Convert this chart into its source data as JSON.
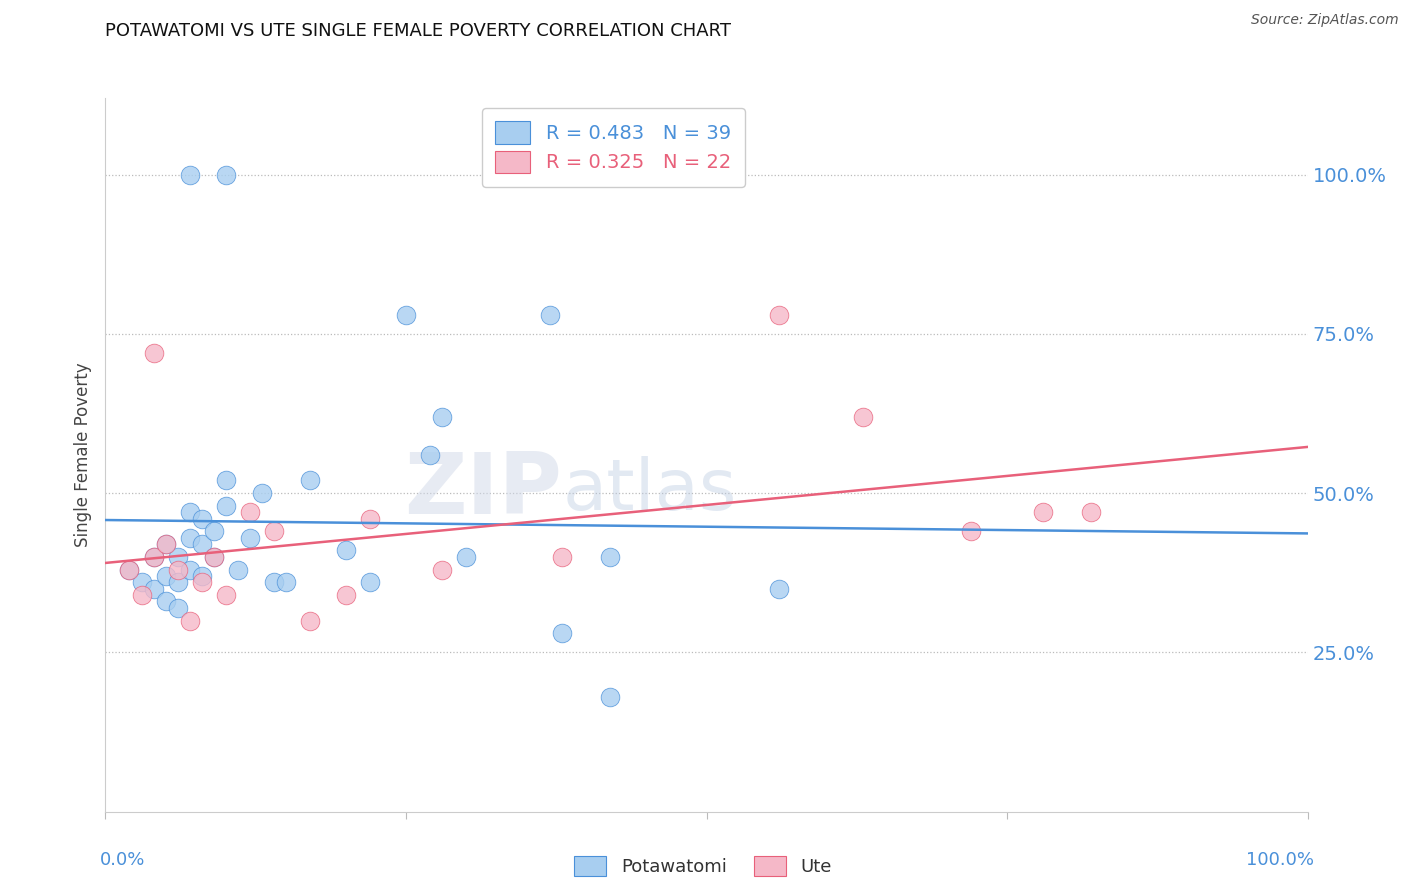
{
  "title": "POTAWATOMI VS UTE SINGLE FEMALE POVERTY CORRELATION CHART",
  "source": "Source: ZipAtlas.com",
  "ylabel": "Single Female Poverty",
  "potawatomi_R": 0.483,
  "potawatomi_N": 39,
  "ute_R": 0.325,
  "ute_N": 22,
  "potawatomi_color": "#A8CEF0",
  "ute_color": "#F5B8C8",
  "potawatomi_line_color": "#4A90D9",
  "ute_line_color": "#E8607A",
  "right_ytick_labels": [
    "100.0%",
    "75.0%",
    "50.0%",
    "25.0%"
  ],
  "right_ytick_values": [
    1.0,
    0.75,
    0.5,
    0.25
  ],
  "watermark_zip": "ZIP",
  "watermark_atlas": "atlas",
  "background_color": "#FFFFFF",
  "potawatomi_x": [
    0.02,
    0.03,
    0.04,
    0.04,
    0.05,
    0.05,
    0.05,
    0.06,
    0.06,
    0.06,
    0.07,
    0.07,
    0.07,
    0.08,
    0.08,
    0.08,
    0.09,
    0.09,
    0.1,
    0.1,
    0.11,
    0.12,
    0.13,
    0.14,
    0.15,
    0.17,
    0.2,
    0.22,
    0.27,
    0.3,
    0.38,
    0.42,
    0.07,
    0.1,
    0.25,
    0.37,
    0.42,
    0.56,
    0.28
  ],
  "potawatomi_y": [
    0.38,
    0.36,
    0.35,
    0.4,
    0.33,
    0.37,
    0.42,
    0.32,
    0.36,
    0.4,
    0.38,
    0.43,
    0.47,
    0.37,
    0.42,
    0.46,
    0.4,
    0.44,
    0.48,
    0.52,
    0.38,
    0.43,
    0.5,
    0.36,
    0.36,
    0.52,
    0.41,
    0.36,
    0.56,
    0.4,
    0.28,
    0.4,
    1.0,
    1.0,
    0.78,
    0.78,
    0.18,
    0.35,
    0.62
  ],
  "ute_x": [
    0.02,
    0.03,
    0.04,
    0.05,
    0.06,
    0.07,
    0.08,
    0.09,
    0.1,
    0.12,
    0.14,
    0.17,
    0.2,
    0.22,
    0.28,
    0.38,
    0.56,
    0.63,
    0.72,
    0.78,
    0.82,
    0.04
  ],
  "ute_y": [
    0.38,
    0.34,
    0.4,
    0.42,
    0.38,
    0.3,
    0.36,
    0.4,
    0.34,
    0.47,
    0.44,
    0.3,
    0.34,
    0.46,
    0.38,
    0.4,
    0.78,
    0.62,
    0.44,
    0.47,
    0.47,
    0.72
  ],
  "xlim": [
    0.0,
    1.0
  ],
  "ylim": [
    0.0,
    1.12
  ]
}
